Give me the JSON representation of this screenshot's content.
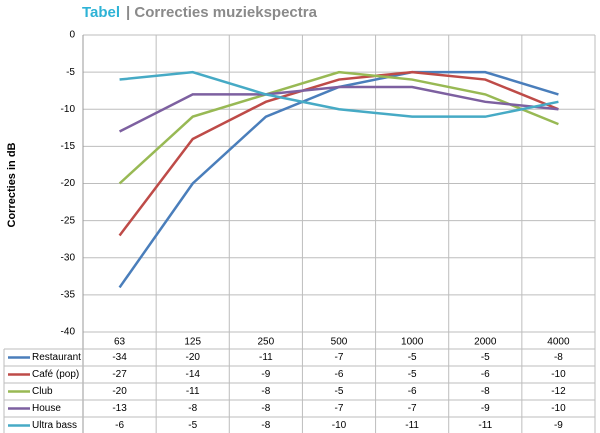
{
  "chart_data": {
    "type": "line",
    "title": "Tabel",
    "subtitle": "| Correcties muziekspectra",
    "y_label": "Correcties in dB",
    "categories": [
      "63",
      "125",
      "250",
      "500",
      "1000",
      "2000",
      "4000"
    ],
    "ylim": [
      -40,
      0
    ],
    "yticks": [
      -40,
      -35,
      -30,
      -25,
      -20,
      -15,
      -10,
      -5,
      0
    ],
    "grid": true,
    "series": [
      {
        "name": "Restaurant",
        "color": "#4a7ebb",
        "values": [
          -34,
          -20,
          -11,
          -7,
          -5,
          -5,
          -8
        ]
      },
      {
        "name": "Café (pop)",
        "color": "#be4b48",
        "values": [
          -27,
          -14,
          -9,
          -6,
          -5,
          -6,
          -10
        ]
      },
      {
        "name": "Club",
        "color": "#98b954",
        "values": [
          -20,
          -11,
          -8,
          -5,
          -6,
          -8,
          -12
        ]
      },
      {
        "name": "House",
        "color": "#7d60a0",
        "values": [
          -13,
          -8,
          -8,
          -7,
          -7,
          -9,
          -10
        ]
      },
      {
        "name": "Ultra bass",
        "color": "#46aac5",
        "values": [
          -6,
          -5,
          -8,
          -10,
          -11,
          -11,
          -9
        ]
      }
    ]
  }
}
